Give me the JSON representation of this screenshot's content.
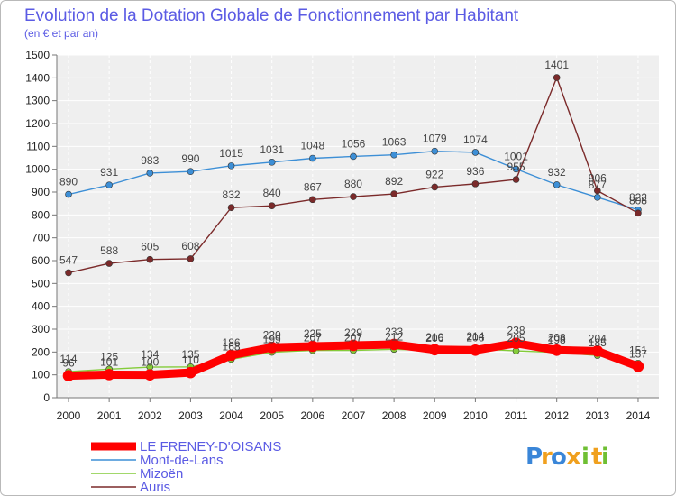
{
  "chart_data": {
    "type": "line",
    "title": "Evolution de la Dotation Globale de Fonctionnement par Habitant",
    "subtitle": "(en € et par an)",
    "xlabel": "",
    "ylabel": "",
    "ylim": [
      0,
      1500
    ],
    "yticks": [
      0,
      100,
      200,
      300,
      400,
      500,
      600,
      700,
      800,
      900,
      1000,
      1100,
      1200,
      1300,
      1400,
      1500
    ],
    "categories": [
      "2000",
      "2001",
      "2002",
      "2003",
      "2004",
      "2005",
      "2006",
      "2007",
      "2008",
      "2009",
      "2010",
      "2011",
      "2012",
      "2013",
      "2014"
    ],
    "grid": true,
    "legend_position": "bottom-left",
    "series": [
      {
        "name": "LE FRENEY-D'OISANS",
        "color": "#ff0000",
        "values": [
          96,
          101,
          100,
          110,
          186,
          220,
          225,
          229,
          233,
          210,
          208,
          238,
          208,
          204,
          137
        ],
        "labels": [
          "96",
          "101",
          "100",
          "110",
          "186",
          "220",
          "225",
          "229",
          "233",
          "210",
          "208",
          "238",
          "208",
          "204",
          "137"
        ]
      },
      {
        "name": "Mont-de-Lans",
        "color": "#3d8fd6",
        "values": [
          890,
          931,
          983,
          990,
          1015,
          1031,
          1048,
          1056,
          1063,
          1079,
          1074,
          1001,
          932,
          877,
          822
        ],
        "labels": [
          "890",
          "931",
          "983",
          "990",
          "1015",
          "1031",
          "1048",
          "1056",
          "1063",
          "1079",
          "1074",
          "1001",
          "932",
          "877",
          "822"
        ]
      },
      {
        "name": "Mizoën",
        "color": "#84cc3a",
        "values": [
          114,
          125,
          134,
          135,
          168,
          199,
          207,
          207,
          212,
          206,
          214,
          205,
          198,
          185,
          151
        ],
        "labels": [
          "114",
          "125",
          "134",
          "135",
          "168",
          "199",
          "207",
          "207",
          "212",
          "206",
          "214",
          "205",
          "198",
          "185",
          "151"
        ]
      },
      {
        "name": "Auris",
        "color": "#7b2a2a",
        "values": [
          547,
          588,
          605,
          608,
          832,
          840,
          867,
          880,
          892,
          922,
          936,
          955,
          1401,
          906,
          808
        ],
        "labels": [
          "547",
          "588",
          "605",
          "608",
          "832",
          "840",
          "867",
          "880",
          "892",
          "922",
          "936",
          "955",
          "1401",
          "906",
          "808"
        ]
      }
    ]
  },
  "logo": {
    "text": "Proxiti",
    "letters": [
      "P",
      "r",
      "o",
      "x",
      "i",
      "t",
      "i"
    ],
    "letter_colors": [
      "#3a86d8",
      "#f0a01e",
      "#3a86d8",
      "#f0a01e",
      "#6fbf33",
      "#f0a01e",
      "#6fbf33"
    ]
  }
}
